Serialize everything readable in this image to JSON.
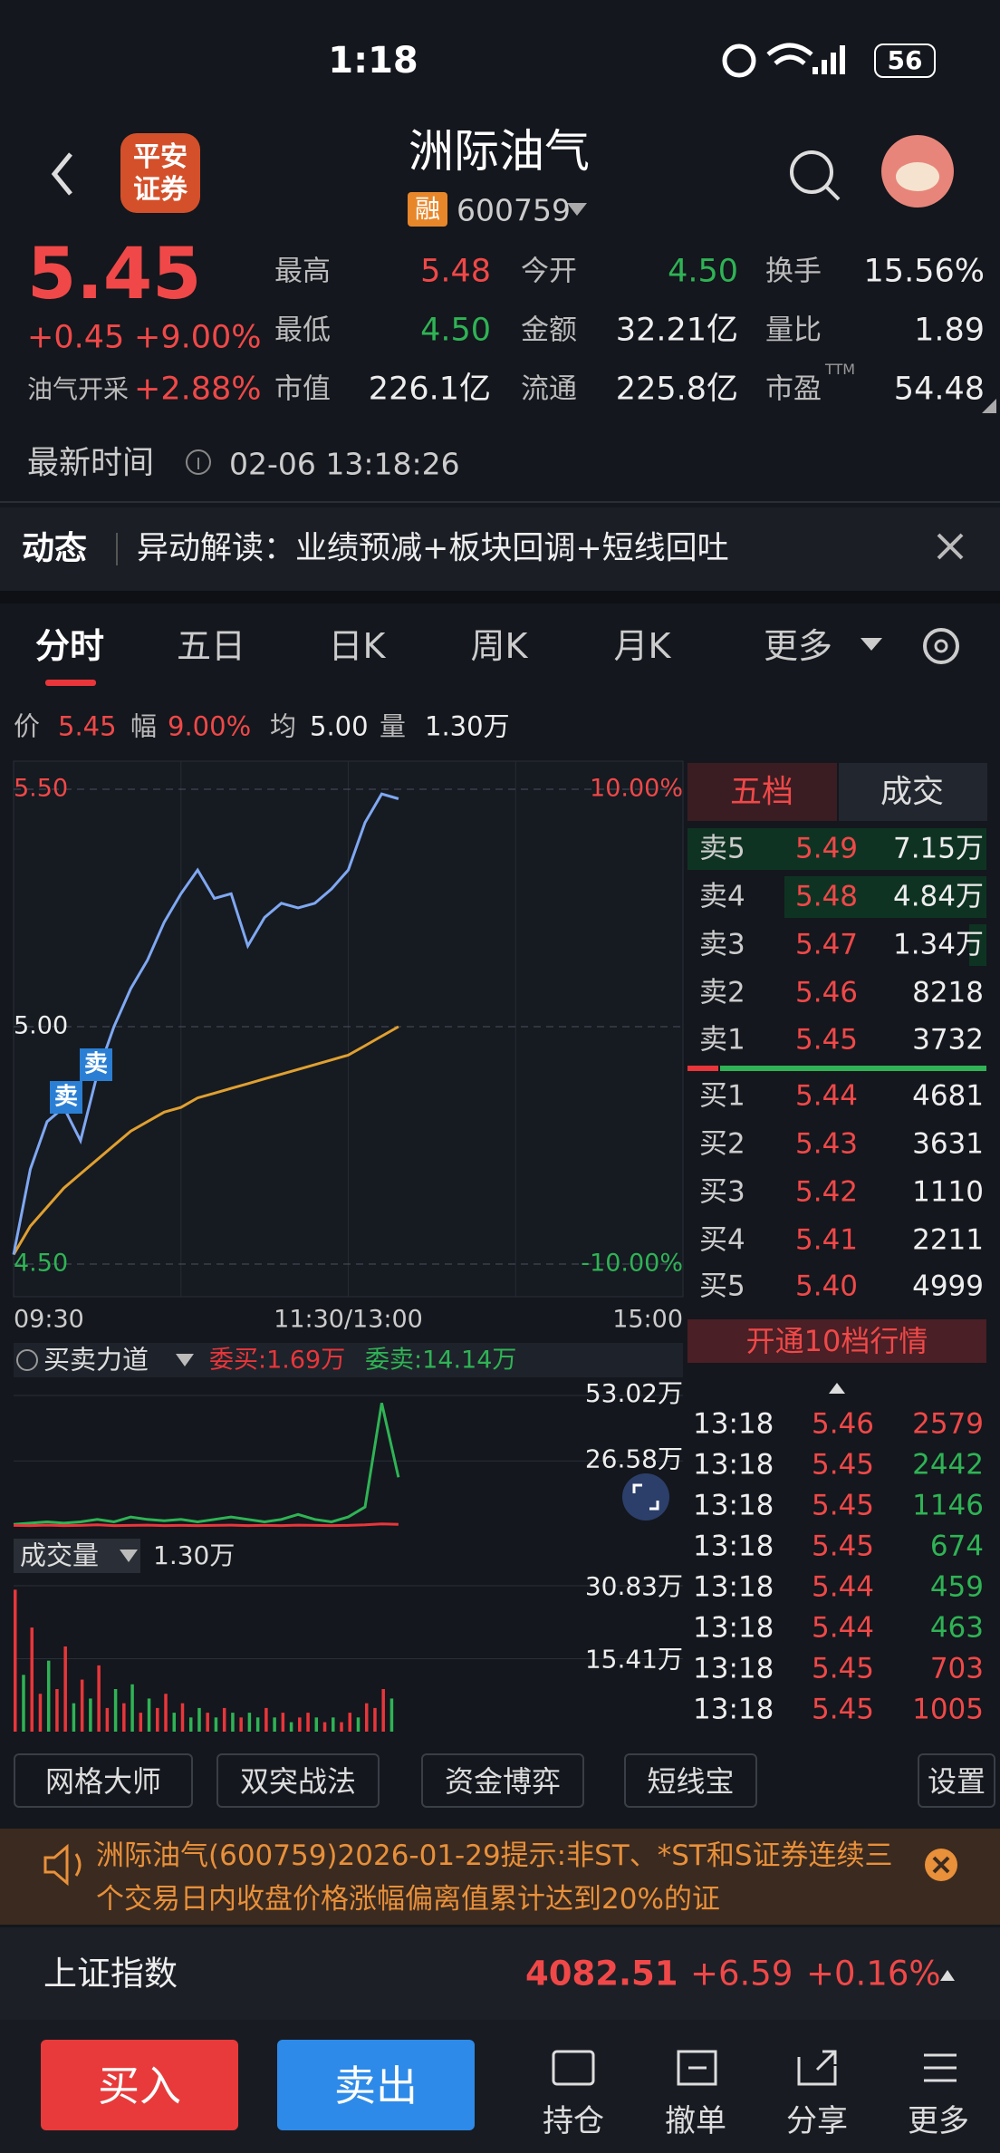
{
  "status_bar": {
    "time": "1:18",
    "battery": "56"
  },
  "header": {
    "logo": [
      "平安",
      "证券"
    ],
    "title": "洲际油气",
    "badge": "融",
    "code": "600759"
  },
  "quote": {
    "price": "5.45",
    "change": "+0.45",
    "change_pct": "+9.00%",
    "sector": "油气开采",
    "sector_pct": "+2.88%",
    "stats": [
      {
        "label": "最高",
        "value": "5.48"
      },
      {
        "label": "今开",
        "value": "4.50"
      },
      {
        "label": "换手",
        "value": "15.56%"
      },
      {
        "label": "最低",
        "value": "4.50"
      },
      {
        "label": "金额",
        "value": "32.21亿"
      },
      {
        "label": "量比",
        "value": "1.89"
      },
      {
        "label": "市值",
        "value": "226.1亿"
      },
      {
        "label": "流通",
        "value": "225.8亿"
      },
      {
        "label": "市盈",
        "sup": "TTM",
        "value": "54.48"
      }
    ]
  },
  "update": {
    "label": "最新时间",
    "time": "02-06 13:18:26"
  },
  "news": {
    "label": "动态",
    "text": "异动解读：业绩预减+板块回调+短线回吐"
  },
  "tabs": [
    "分时",
    "五日",
    "日K",
    "周K",
    "月K",
    "更多"
  ],
  "summary": [
    {
      "label": "价",
      "value": "5.45"
    },
    {
      "label": "幅",
      "value": "9.00%"
    },
    {
      "label": "均",
      "value": "5.00"
    },
    {
      "label": "量",
      "value": "1.30万"
    }
  ],
  "chart_data": [
    {
      "type": "line",
      "x_labels": [
        "09:30",
        "11:30/13:00",
        "15:00"
      ],
      "series": [
        {
          "color": "#7fa8f2",
          "values": [
            4.52,
            4.7,
            4.8,
            4.83,
            4.76,
            4.9,
            5.0,
            5.08,
            5.14,
            5.22,
            5.28,
            5.33,
            5.27,
            5.28,
            5.17,
            5.23,
            5.26,
            5.25,
            5.26,
            5.29,
            5.33,
            5.43,
            5.49,
            5.48
          ]
        },
        {
          "color": "#e0a030",
          "values": [
            4.52,
            4.58,
            4.62,
            4.66,
            4.69,
            4.72,
            4.75,
            4.78,
            4.8,
            4.82,
            4.83,
            4.85,
            4.86,
            4.87,
            4.88,
            4.89,
            4.9,
            4.91,
            4.92,
            4.93,
            4.94,
            4.96,
            4.98,
            5.0
          ]
        }
      ],
      "ylim": [
        4.5,
        5.5
      ],
      "yticks": [
        {
          "value": 5.5,
          "label": "5.50"
        },
        {
          "value": 5.0,
          "label": "5.00"
        },
        {
          "value": 4.5,
          "label": "4.50"
        }
      ],
      "y2lim": [
        -10,
        10
      ],
      "y2ticks": [
        {
          "value": 10,
          "label": "10.00%"
        },
        {
          "value": -10,
          "label": "-10.00%"
        }
      ],
      "annotations": [
        "卖",
        "卖"
      ]
    },
    {
      "type": "line",
      "title": "买卖力道",
      "series": [
        {
          "name": "委买:1.69万",
          "color": "#e8363b",
          "values": [
            0.6,
            0.5,
            0.7,
            0.5,
            0.6,
            0.8,
            0.5,
            0.6,
            0.7,
            0.5,
            0.6,
            0.5,
            0.6,
            0.7,
            0.5,
            0.6,
            0.5,
            0.7,
            0.6,
            0.5,
            0.6,
            0.8,
            1.2,
            1.0
          ]
        },
        {
          "name": "委卖:14.14万",
          "color": "#2fb355",
          "values": [
            1,
            1.5,
            2,
            1.5,
            2,
            3,
            2,
            4,
            3,
            2.5,
            3,
            2,
            3,
            4,
            3,
            2,
            3,
            5,
            3,
            2,
            4,
            8,
            50,
            20
          ]
        }
      ],
      "ylim": [
        0,
        53.02
      ],
      "yticks": [
        {
          "value": 53.02,
          "label": "53.02万"
        },
        {
          "value": 26.58,
          "label": "26.58万"
        }
      ]
    },
    {
      "type": "bar",
      "title": "成交量",
      "subtitle": "1.30万",
      "values": [
        30,
        12,
        22,
        8,
        15,
        9,
        18,
        6,
        11,
        7,
        14,
        5,
        9,
        6,
        10,
        4,
        7,
        5,
        8,
        4,
        6,
        3,
        5,
        4,
        3,
        5,
        4,
        3,
        4,
        3,
        5,
        3,
        4,
        2,
        3,
        4,
        3,
        2,
        3,
        2,
        4,
        3,
        6,
        5,
        9,
        7
      ],
      "colors": [
        "#e8363b",
        "#2fb355",
        "#e8363b",
        "#e8363b",
        "#2fb355",
        "#e8363b",
        "#e8363b",
        "#2fb355",
        "#e8363b",
        "#2fb355",
        "#e8363b",
        "#e8363b",
        "#2fb355",
        "#e8363b",
        "#2fb355",
        "#e8363b",
        "#2fb355",
        "#e8363b",
        "#e8363b",
        "#2fb355",
        "#e8363b",
        "#2fb355",
        "#2fb355",
        "#e8363b",
        "#2fb355",
        "#e8363b",
        "#2fb355",
        "#e8363b",
        "#2fb355",
        "#2fb355",
        "#e8363b",
        "#2fb355",
        "#e8363b",
        "#2fb355",
        "#e8363b",
        "#e8363b",
        "#2fb355",
        "#e8363b",
        "#2fb355",
        "#e8363b",
        "#e8363b",
        "#2fb355",
        "#e8363b",
        "#e8363b",
        "#e8363b",
        "#2fb355"
      ],
      "ylim": [
        0,
        30.83
      ],
      "yticks": [
        {
          "value": 30.83,
          "label": "30.83万"
        },
        {
          "value": 15.41,
          "label": "15.41万"
        }
      ]
    }
  ],
  "order_book": {
    "tabs": [
      "五档",
      "成交"
    ],
    "asks": [
      {
        "label": "卖5",
        "price": "5.49",
        "volume": "7.15万"
      },
      {
        "label": "卖4",
        "price": "5.48",
        "volume": "4.84万"
      },
      {
        "label": "卖3",
        "price": "5.47",
        "volume": "1.34万"
      },
      {
        "label": "卖2",
        "price": "5.46",
        "volume": "8218"
      },
      {
        "label": "卖1",
        "price": "5.45",
        "volume": "3732"
      }
    ],
    "bids": [
      {
        "label": "买1",
        "price": "5.44",
        "volume": "4681"
      },
      {
        "label": "买2",
        "price": "5.43",
        "volume": "3631"
      },
      {
        "label": "买3",
        "price": "5.42",
        "volume": "1110"
      },
      {
        "label": "买4",
        "price": "5.41",
        "volume": "2211"
      },
      {
        "label": "买5",
        "price": "5.40",
        "volume": "4999"
      }
    ],
    "upgrade": "开通10档行情"
  },
  "trades": [
    {
      "time": "13:18",
      "price": "5.46",
      "volume": "2579",
      "color": "#f04848"
    },
    {
      "time": "13:18",
      "price": "5.45",
      "volume": "2442",
      "color": "#2fb355"
    },
    {
      "time": "13:18",
      "price": "5.45",
      "volume": "1146",
      "color": "#2fb355"
    },
    {
      "time": "13:18",
      "price": "5.45",
      "volume": "674",
      "color": "#2fb355"
    },
    {
      "time": "13:18",
      "price": "5.44",
      "volume": "459",
      "color": "#2fb355"
    },
    {
      "time": "13:18",
      "price": "5.44",
      "volume": "463",
      "color": "#2fb355"
    },
    {
      "time": "13:18",
      "price": "5.45",
      "volume": "703",
      "color": "#f04848"
    },
    {
      "time": "13:18",
      "price": "5.45",
      "volume": "1005",
      "color": "#f04848"
    }
  ],
  "tools": [
    "网格大师",
    "双突战法",
    "资金博弈",
    "短线宝",
    "设置"
  ],
  "notice": "洲际油气(600759)2026-01-29提示:非ST、*ST和S证券连续三个交易日内收盘价格涨幅偏离值累计达到20%的证",
  "index": {
    "name": "上证指数",
    "value": "4082.51",
    "change": "+6.59",
    "change_pct": "+0.16%"
  },
  "nav": {
    "buy": "买入",
    "sell": "卖出",
    "items": [
      "持仓",
      "撤单",
      "分享",
      "更多"
    ]
  }
}
